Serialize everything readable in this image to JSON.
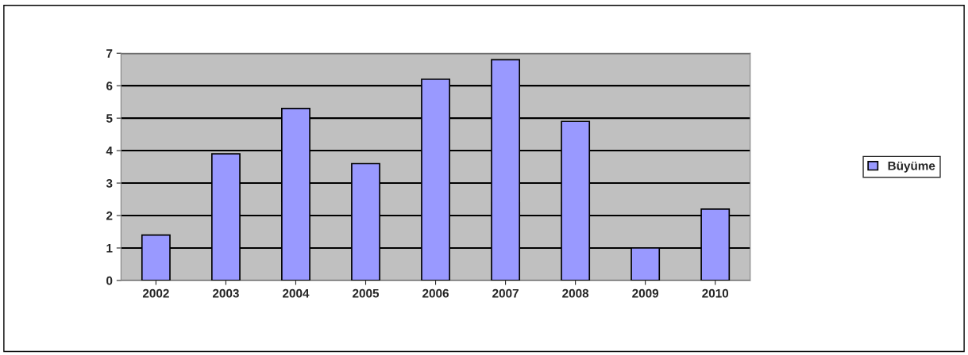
{
  "chart_data": {
    "type": "bar",
    "categories": [
      "2002",
      "2003",
      "2004",
      "2005",
      "2006",
      "2007",
      "2008",
      "2009",
      "2010"
    ],
    "series": [
      {
        "name": "Büyüme",
        "color": "#9999ff",
        "values": [
          1.4,
          3.9,
          5.3,
          3.6,
          6.2,
          6.8,
          4.9,
          1.0,
          2.2
        ]
      }
    ],
    "ylim": [
      0,
      7
    ],
    "yticks": [
      0,
      1,
      2,
      3,
      4,
      5,
      6,
      7
    ],
    "grid": "y",
    "legend": "right"
  }
}
